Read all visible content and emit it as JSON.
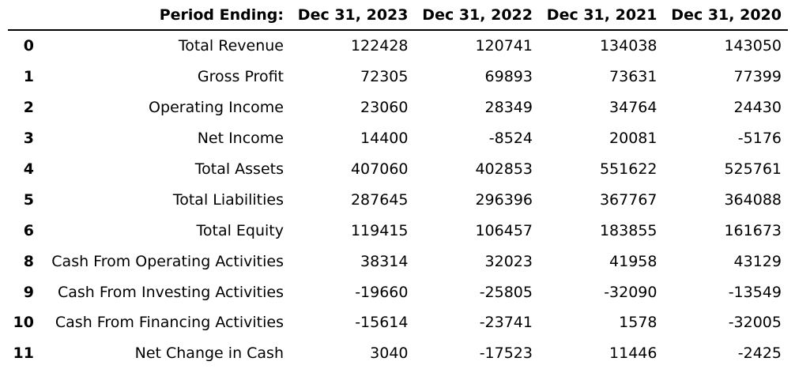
{
  "header": {
    "index_label": "",
    "period_label": "Period Ending:",
    "periods": [
      "Dec 31, 2023",
      "Dec 31, 2022",
      "Dec 31, 2021",
      "Dec 31, 2020"
    ]
  },
  "rows": [
    {
      "index": "0",
      "label": "Total Revenue",
      "values": [
        "122428",
        "120741",
        "134038",
        "143050"
      ]
    },
    {
      "index": "1",
      "label": "Gross Profit",
      "values": [
        "72305",
        "69893",
        "73631",
        "77399"
      ]
    },
    {
      "index": "2",
      "label": "Operating Income",
      "values": [
        "23060",
        "28349",
        "34764",
        "24430"
      ]
    },
    {
      "index": "3",
      "label": "Net Income",
      "values": [
        "14400",
        "-8524",
        "20081",
        "-5176"
      ]
    },
    {
      "index": "4",
      "label": "Total Assets",
      "values": [
        "407060",
        "402853",
        "551622",
        "525761"
      ]
    },
    {
      "index": "5",
      "label": "Total Liabilities",
      "values": [
        "287645",
        "296396",
        "367767",
        "364088"
      ]
    },
    {
      "index": "6",
      "label": "Total Equity",
      "values": [
        "119415",
        "106457",
        "183855",
        "161673"
      ]
    },
    {
      "index": "8",
      "label": "Cash From Operating Activities",
      "values": [
        "38314",
        "32023",
        "41958",
        "43129"
      ]
    },
    {
      "index": "9",
      "label": "Cash From Investing Activities",
      "values": [
        "-19660",
        "-25805",
        "-32090",
        "-13549"
      ]
    },
    {
      "index": "10",
      "label": "Cash From Financing Activities",
      "values": [
        "-15614",
        "-23741",
        "1578",
        "-32005"
      ]
    },
    {
      "index": "11",
      "label": "Net Change in Cash",
      "values": [
        "3040",
        "-17523",
        "11446",
        "-2425"
      ]
    }
  ]
}
